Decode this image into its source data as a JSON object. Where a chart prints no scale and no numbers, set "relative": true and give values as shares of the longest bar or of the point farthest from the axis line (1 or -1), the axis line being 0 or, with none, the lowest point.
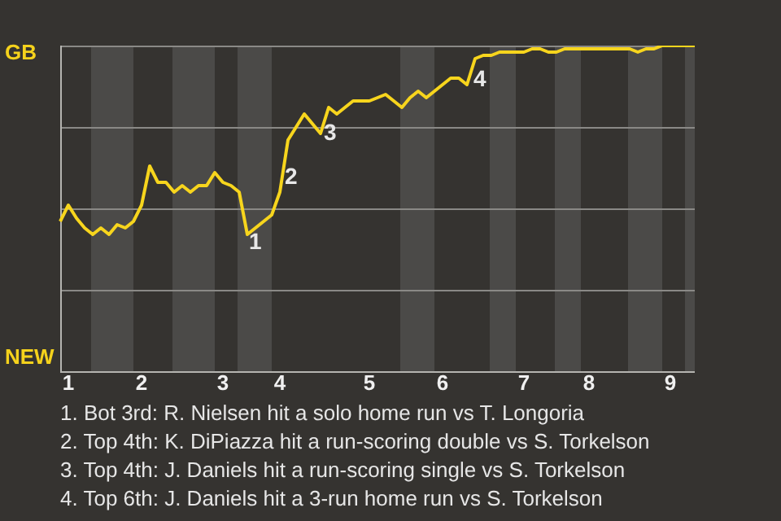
{
  "chart_data": {
    "type": "line",
    "relative": true,
    "categories": [
      null,
      "1",
      null,
      null,
      null,
      null,
      null,
      null,
      null,
      null,
      "2",
      null,
      null,
      null,
      null,
      null,
      null,
      null,
      null,
      null,
      "3",
      null,
      null,
      null,
      null,
      null,
      null,
      "4",
      null,
      null,
      null,
      null,
      null,
      null,
      null,
      null,
      null,
      null,
      "5",
      null,
      null,
      null,
      null,
      null,
      null,
      null,
      null,
      "6",
      null,
      null,
      null,
      null,
      null,
      null,
      null,
      null,
      null,
      "7",
      null,
      null,
      null,
      null,
      null,
      null,
      null,
      "8",
      null,
      null,
      null,
      null,
      null,
      null,
      null,
      null,
      null,
      "9",
      null,
      null,
      null
    ],
    "grid": "y",
    "series": [
      {
        "color": "#f7d51d",
        "values": [
          0.46,
          0.51,
          0.47,
          0.44,
          0.42,
          0.44,
          0.42,
          0.45,
          0.44,
          0.46,
          0.51,
          0.63,
          0.58,
          0.58,
          0.55,
          0.57,
          0.55,
          0.57,
          0.57,
          0.61,
          0.58,
          0.57,
          0.55,
          0.42,
          0.44,
          0.46,
          0.48,
          0.55,
          0.71,
          0.75,
          0.79,
          0.76,
          0.73,
          0.81,
          0.79,
          0.81,
          0.83,
          0.83,
          0.83,
          0.84,
          0.85,
          0.83,
          0.81,
          0.84,
          0.86,
          0.84,
          0.86,
          0.88,
          0.9,
          0.9,
          0.88,
          0.96,
          0.97,
          0.97,
          0.98,
          0.98,
          0.98,
          0.98,
          0.99,
          0.99,
          0.98,
          0.98,
          0.99,
          0.99,
          0.99,
          0.99,
          0.99,
          0.99,
          0.99,
          0.99,
          0.99,
          0.98,
          0.99,
          0.99,
          1.0,
          1.0,
          1.0,
          1.0,
          1.0
        ]
      }
    ],
    "annotations": [
      "GB",
      "NEW",
      "1",
      "2",
      "3",
      "4",
      "1. Bot 3rd: R. Nielsen hit a solo home run vs T. Longoria",
      "2. Top 4th: K. DiPiazza hit a run-scoring double vs S. Torkelson",
      "3. Top 4th: J. Daniels hit a run-scoring single vs S. Torkelson",
      "4. Top 6th: J. Daniels hit a 3-run home run vs S. Torkelson"
    ]
  }
}
